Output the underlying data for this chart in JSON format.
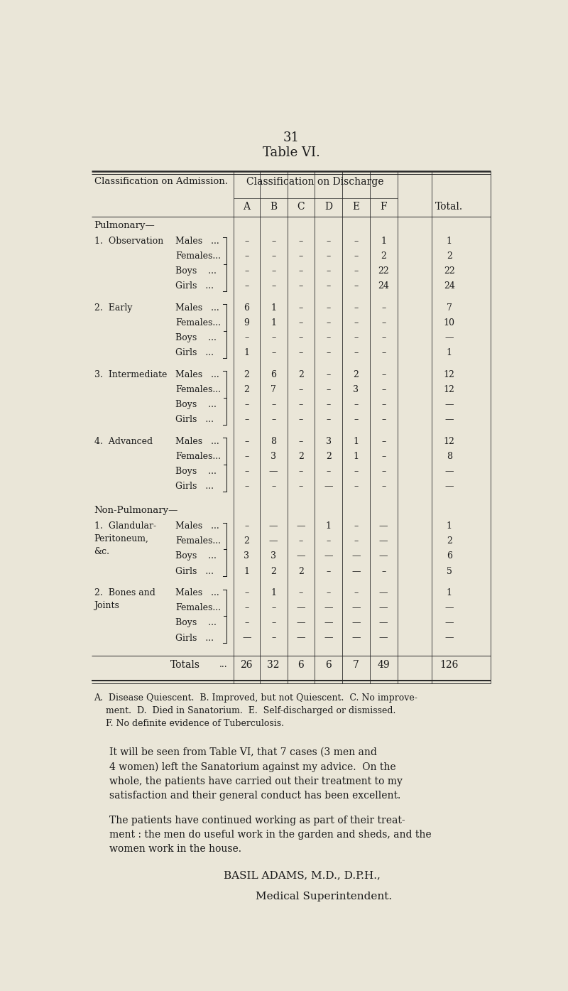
{
  "page_number": "31",
  "title": "Table VI.",
  "bg_color": "#eae6d8",
  "text_color": "#1a1a1a",
  "header_row1": "Classification on Discharge",
  "header_col": "Classification on Admission.",
  "col_headers": [
    "A",
    "B",
    "C",
    "D",
    "E",
    "F",
    "Total."
  ],
  "sections": [
    {
      "section_label": "Pulmonary—",
      "groups": [
        {
          "group_label": [
            "1.  Observation"
          ],
          "rows": [
            {
              "sub": "Males   ...",
              "vals": [
                "–",
                "–",
                "–",
                "–",
                "–",
                "1",
                "1"
              ]
            },
            {
              "sub": "Females...",
              "vals": [
                "–",
                "–",
                "–",
                "–",
                "–",
                "2",
                "2"
              ]
            },
            {
              "sub": "Boys    ...",
              "vals": [
                "–",
                "–",
                "–",
                "–",
                "–",
                "22",
                "22"
              ]
            },
            {
              "sub": "Girls   ...",
              "vals": [
                "–",
                "–",
                "–",
                "–",
                "–",
                "24",
                "24"
              ]
            }
          ]
        },
        {
          "group_label": [
            "2.  Early"
          ],
          "rows": [
            {
              "sub": "Males   ...",
              "vals": [
                "6",
                "1",
                "–",
                "–",
                "–",
                "–",
                "7"
              ]
            },
            {
              "sub": "Females...",
              "vals": [
                "9",
                "1",
                "–",
                "–",
                "–",
                "–",
                "10"
              ]
            },
            {
              "sub": "Boys    ...",
              "vals": [
                "–",
                "–",
                "–",
                "–",
                "–",
                "–",
                "—"
              ]
            },
            {
              "sub": "Girls   ...",
              "vals": [
                "1",
                "–",
                "–",
                "–",
                "–",
                "–",
                "1"
              ]
            }
          ]
        },
        {
          "group_label": [
            "3.  Intermediate"
          ],
          "rows": [
            {
              "sub": "Males   ...",
              "vals": [
                "2",
                "6",
                "2",
                "–",
                "2",
                "–",
                "12"
              ]
            },
            {
              "sub": "Females...",
              "vals": [
                "2",
                "7",
                "–",
                "–",
                "3",
                "–",
                "12"
              ]
            },
            {
              "sub": "Boys    ...",
              "vals": [
                "–",
                "–",
                "–",
                "–",
                "–",
                "–",
                "—"
              ]
            },
            {
              "sub": "Girls   ...",
              "vals": [
                "–",
                "–",
                "–",
                "–",
                "–",
                "–",
                "—"
              ]
            }
          ]
        },
        {
          "group_label": [
            "4.  Advanced"
          ],
          "rows": [
            {
              "sub": "Males   ...",
              "vals": [
                "–",
                "8",
                "–",
                "3",
                "1",
                "–",
                "12"
              ]
            },
            {
              "sub": "Females...",
              "vals": [
                "–",
                "3",
                "2",
                "2",
                "1",
                "–",
                "8"
              ]
            },
            {
              "sub": "Boys    ...",
              "vals": [
                "–",
                "—",
                "–",
                "–",
                "–",
                "–",
                "—"
              ]
            },
            {
              "sub": "Girls   ...",
              "vals": [
                "–",
                "–",
                "–",
                "—",
                "–",
                "–",
                "—"
              ]
            }
          ]
        }
      ]
    },
    {
      "section_label": "Non-Pulmonary—",
      "groups": [
        {
          "group_label": [
            "1.  Glandular-",
            "    Peritoneum,",
            "    &c."
          ],
          "rows": [
            {
              "sub": "Males   ...",
              "vals": [
                "–",
                "—",
                "—",
                "1",
                "–",
                "—",
                "1"
              ]
            },
            {
              "sub": "Females...",
              "vals": [
                "2",
                "—",
                "–",
                "–",
                "–",
                "—",
                "2"
              ]
            },
            {
              "sub": "Boys    ...",
              "vals": [
                "3",
                "3",
                "—",
                "—",
                "—",
                "—",
                "6"
              ]
            },
            {
              "sub": "Girls   ...",
              "vals": [
                "1",
                "2",
                "2",
                "–",
                "—",
                "–",
                "5"
              ]
            }
          ]
        },
        {
          "group_label": [
            "2.  Bones and",
            "    Joints"
          ],
          "rows": [
            {
              "sub": "Males   ...",
              "vals": [
                "–",
                "1",
                "–",
                "–",
                "–",
                "—",
                "1"
              ]
            },
            {
              "sub": "Females...",
              "vals": [
                "–",
                "–",
                "—",
                "—",
                "—",
                "—",
                "—"
              ]
            },
            {
              "sub": "Boys    ...",
              "vals": [
                "–",
                "–",
                "—",
                "—",
                "—",
                "—",
                "—"
              ]
            },
            {
              "sub": "Girls   ...",
              "vals": [
                "—",
                "–",
                "—",
                "—",
                "—",
                "—",
                "—"
              ]
            }
          ]
        }
      ]
    }
  ],
  "totals_row": {
    "label": "Totals",
    "vals": [
      "26",
      "32",
      "6",
      "6",
      "7",
      "49",
      "126"
    ]
  },
  "footnote_lines": [
    "A.  Disease Quiescent.  B. Improved, but not Quiescent.  C. No improve-",
    "    ment.  D.  Died in Sanatorium.  E.  Self-discharged or dismissed.",
    "    F. No definite evidence of Tuberculosis."
  ],
  "body_para1_lines": [
    "It will be seen from Table VI, that 7 cases (3 men and",
    "4 women) left the Sanatorium against my advice.  On the",
    "whole, the patients have carried out their treatment to my",
    "satisfaction and their general conduct has been excellent."
  ],
  "body_para2_lines": [
    "The patients have continued working as part of their treat-",
    "ment : the men do useful work in the garden and sheds, and the",
    "women work in the house."
  ],
  "signature_line1": "BASIL ADAMS, M.D., D.P.H.,",
  "signature_line2": "Medical Superintendent."
}
